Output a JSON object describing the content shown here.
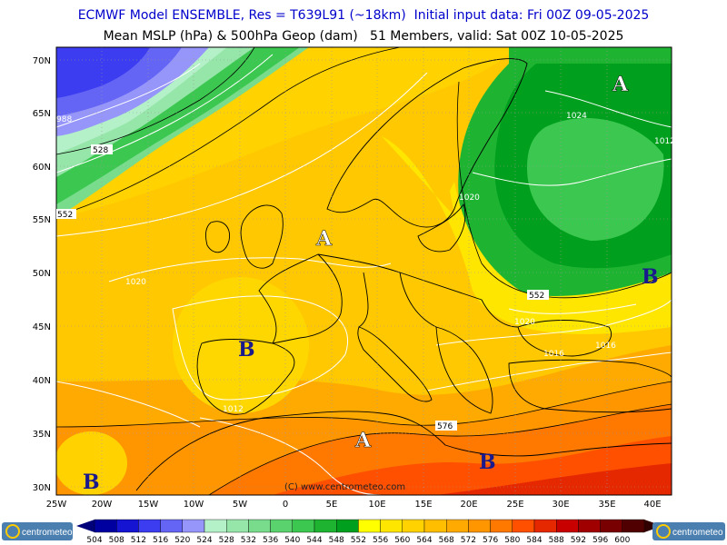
{
  "header": {
    "line1": "ECMWF Model ENSEMBLE, Res = T639L91 (~18km)  Initial input data: Fri 00Z 09-05-2025",
    "line2": "Mean MSLP (hPa) & 500hPa Geop (dam)   51 Members, valid: Sat 00Z 10-05-2025"
  },
  "axes": {
    "lat_labels": [
      "70N",
      "65N",
      "60N",
      "55N",
      "50N",
      "45N",
      "40N",
      "35N",
      "30N"
    ],
    "lon_labels": [
      "25W",
      "20W",
      "15W",
      "10W",
      "5W",
      "0",
      "5E",
      "10E",
      "15E",
      "20E",
      "25E",
      "30E",
      "35E",
      "40E"
    ]
  },
  "pressure_centers": [
    {
      "label": "A",
      "color": "#ffffff"
    },
    {
      "label": "A",
      "color": "#ffffff"
    },
    {
      "label": "A",
      "color": "#ffffff"
    },
    {
      "label": "B",
      "color": "#1a1a8c"
    },
    {
      "label": "B",
      "color": "#1a1a8c"
    },
    {
      "label": "B",
      "color": "#1a1a8c"
    },
    {
      "label": "B",
      "color": "#1a1a8c"
    }
  ],
  "isobar_labels": [
    "988",
    "1024",
    "1012",
    "1020",
    "1020",
    "1020",
    "1016",
    "1016",
    "1012"
  ],
  "geopotential_labels": [
    "528",
    "552",
    "552",
    "576"
  ],
  "copyright": "(C) www.centrometeo.com",
  "colorbar": {
    "values": [
      "504",
      "508",
      "512",
      "516",
      "520",
      "524",
      "528",
      "532",
      "536",
      "540",
      "544",
      "548",
      "552",
      "556",
      "560",
      "564",
      "568",
      "572",
      "576",
      "580",
      "584",
      "588",
      "592",
      "596",
      "600"
    ],
    "colors": [
      "#0000a0",
      "#1414d2",
      "#3c3cf0",
      "#6464f5",
      "#9696fa",
      "#b4f0c8",
      "#96e6aa",
      "#78dc8c",
      "#5ad26e",
      "#3cc850",
      "#1eb432",
      "#00a01e",
      "#ffff00",
      "#ffe600",
      "#ffd200",
      "#ffbe00",
      "#ffaa00",
      "#ff9600",
      "#ff7800",
      "#ff5000",
      "#e62800",
      "#c80000",
      "#a00000",
      "#780000",
      "#500000"
    ]
  },
  "logo": {
    "left": "centrometeo",
    "right": "centrometeo"
  }
}
